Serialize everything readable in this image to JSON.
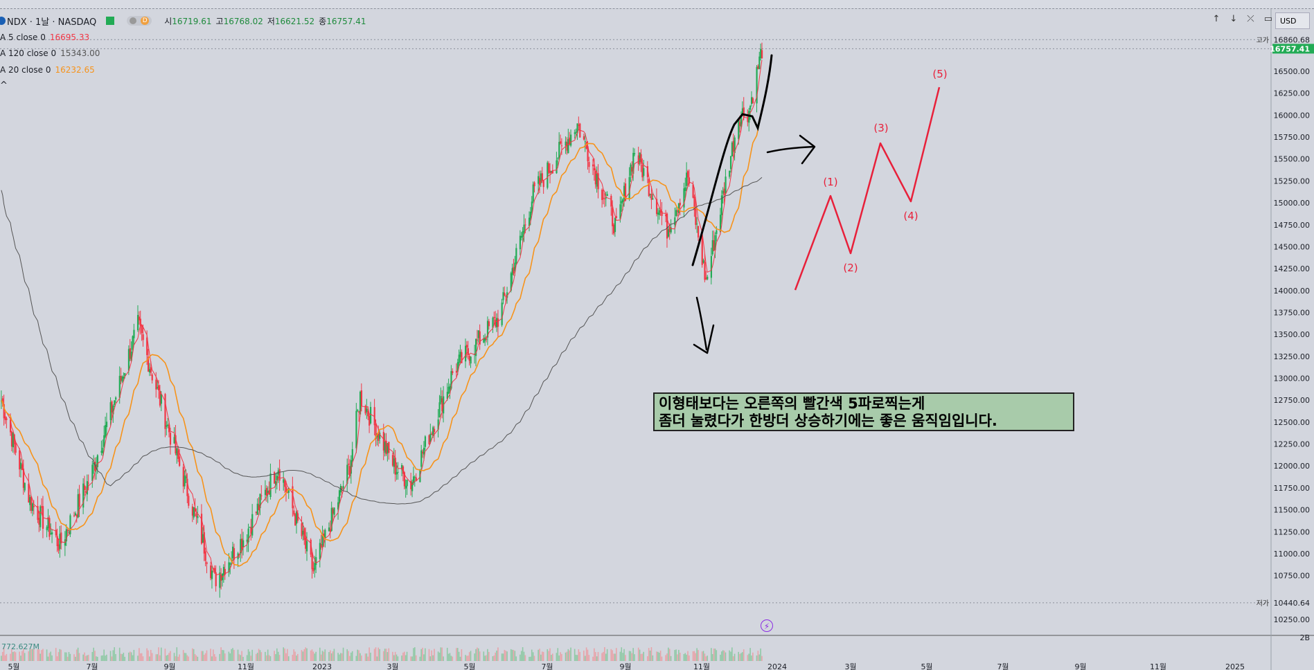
{
  "header": {
    "symbol_title": "NDX · 1날 · NASDAQ",
    "open_label": "시",
    "open_value": "16719.61",
    "high_label": "고",
    "high_value": "16768.02",
    "low_label": "저",
    "low_value": "16621.52",
    "close_label": "종",
    "close_value": "16757.41",
    "toggle_letter": "D",
    "currency": "USD"
  },
  "indicators": [
    {
      "label": "A 5 close 0",
      "value": "16695.33",
      "color": "#f23645"
    },
    {
      "label": "A 120 close 0",
      "value": "15343.00",
      "color": "#555555"
    },
    {
      "label": "A 20 close 0",
      "value": "16232.65",
      "color": "#f7931a"
    }
  ],
  "collapse_glyph": "^",
  "icons": {
    "up": "arrow-up-icon",
    "down": "arrow-down-icon",
    "close": "close-icon",
    "maximize": "maximize-icon",
    "flash": "flash-icon"
  },
  "price_axis": {
    "ticks": [
      "16500.00",
      "16250.00",
      "16000.00",
      "15750.00",
      "15500.00",
      "15250.00",
      "15000.00",
      "14750.00",
      "14500.00",
      "14250.00",
      "14000.00",
      "13750.00",
      "13500.00",
      "13250.00",
      "13000.00",
      "12750.00",
      "12500.00",
      "12250.00",
      "12000.00",
      "11750.00",
      "11500.00",
      "11250.00",
      "11000.00",
      "10750.00",
      "10250.00"
    ],
    "high_label": "고가",
    "high_value": "16860.68",
    "last_value": "16757.41",
    "low_label": "저가",
    "low_value": "10440.64",
    "volume_tick": "2B"
  },
  "volume": {
    "value": "772.627M"
  },
  "time_axis": {
    "ticks": [
      "5월",
      "7월",
      "9월",
      "11월",
      "2023",
      "3월",
      "5월",
      "7월",
      "9월",
      "11월",
      "2024",
      "3월",
      "5월",
      "7월",
      "9월",
      "11월",
      "2025"
    ]
  },
  "annotation": {
    "line1": "이형태보다는 오른쪽의 빨간색 5파로찍는게",
    "line2": "좀더 눌렸다가 한방더 상승하기에는 좋은 움직임입니다."
  },
  "wave_labels": [
    "(1)",
    "(2)",
    "(3)",
    "(4)",
    "(5)"
  ],
  "colors": {
    "background": "#d3d6de",
    "up_candle": "#22ab55",
    "down_candle": "#f23645",
    "ma5": "#f23645",
    "ma20": "#f7931a",
    "ma120": "#555555",
    "wave": "#e8203a",
    "drawing": "#000000",
    "note_bg": "#a8cbaa",
    "last_price_bg": "#22ab55"
  },
  "chart_data": {
    "type": "candlestick",
    "symbol": "NDX",
    "interval": "1날",
    "ylim": [
      10250,
      16860.68
    ],
    "x": [
      "2022-05",
      "2022-07",
      "2022-09",
      "2022-11",
      "2023-01",
      "2023-03",
      "2023-05",
      "2023-07",
      "2023-09",
      "2023-11",
      "2023-12-08"
    ],
    "close_path": [
      [
        "2022-05-01",
        12800
      ],
      [
        "2022-05-24",
        11600
      ],
      [
        "2022-06-16",
        11100
      ],
      [
        "2022-07-10",
        11900
      ],
      [
        "2022-08-15",
        13600
      ],
      [
        "2022-09-10",
        12300
      ],
      [
        "2022-10-13",
        10700
      ],
      [
        "2022-11-05",
        11200
      ],
      [
        "2022-12-01",
        12000
      ],
      [
        "2022-12-28",
        10800
      ],
      [
        "2023-01-25",
        12000
      ],
      [
        "2023-02-02",
        12800
      ],
      [
        "2023-02-28",
        12000
      ],
      [
        "2023-03-13",
        11800
      ],
      [
        "2023-04-15",
        13100
      ],
      [
        "2023-05-20",
        13700
      ],
      [
        "2023-06-15",
        15100
      ],
      [
        "2023-07-19",
        15900
      ],
      [
        "2023-08-18",
        14700
      ],
      [
        "2023-09-01",
        15600
      ],
      [
        "2023-09-26",
        14700
      ],
      [
        "2023-10-12",
        15300
      ],
      [
        "2023-10-26",
        14100
      ],
      [
        "2023-11-20",
        16000
      ],
      [
        "2023-11-28",
        16050
      ],
      [
        "2023-12-08",
        16757.41
      ]
    ],
    "ma_series": [
      {
        "name": "A 5 close 0",
        "last": 16695.33
      },
      {
        "name": "A 20 close 0",
        "last": 16232.65
      },
      {
        "name": "A 120 close 0",
        "last": 15343.0
      }
    ],
    "high": 16860.68,
    "low": 10440.64,
    "volume_last": "772.627M"
  }
}
